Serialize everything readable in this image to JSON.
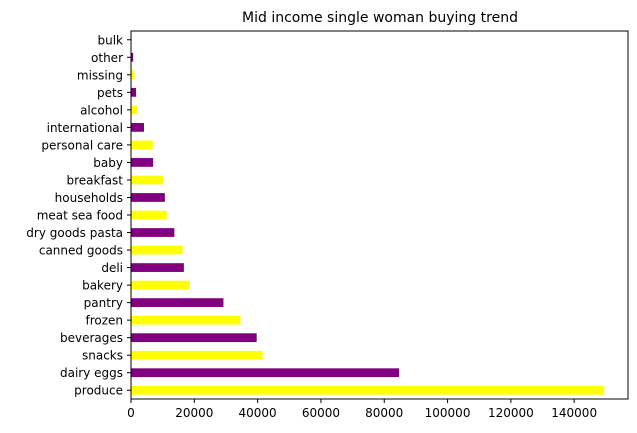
{
  "chart_data": {
    "type": "bar",
    "orientation": "horizontal",
    "title": "Mid income single woman buying trend",
    "xlabel": "",
    "ylabel": "",
    "xlim": [
      0,
      157000
    ],
    "xticks": [
      0,
      20000,
      40000,
      60000,
      80000,
      100000,
      120000,
      140000
    ],
    "xtick_labels": [
      "0",
      "20000",
      "40000",
      "60000",
      "80000",
      "100000",
      "120000",
      "140000"
    ],
    "grid": false,
    "categories": [
      "produce",
      "dairy eggs",
      "snacks",
      "beverages",
      "frozen",
      "pantry",
      "bakery",
      "deli",
      "canned goods",
      "dry goods pasta",
      "meat sea food",
      "households",
      "breakfast",
      "baby",
      "personal care",
      "international",
      "alcohol",
      "pets",
      "missing",
      "other",
      "bulk"
    ],
    "values": [
      149500,
      84700,
      41600,
      39700,
      34600,
      29200,
      18600,
      16700,
      16300,
      13700,
      11300,
      10700,
      10100,
      7000,
      6900,
      4100,
      1900,
      1600,
      1100,
      700,
      200
    ],
    "colors": [
      "#ffff00",
      "#800080",
      "#ffff00",
      "#800080",
      "#ffff00",
      "#800080",
      "#ffff00",
      "#800080",
      "#ffff00",
      "#800080",
      "#ffff00",
      "#800080",
      "#ffff00",
      "#800080",
      "#ffff00",
      "#800080",
      "#ffff00",
      "#800080",
      "#ffff00",
      "#800080",
      "#ffff00"
    ]
  }
}
